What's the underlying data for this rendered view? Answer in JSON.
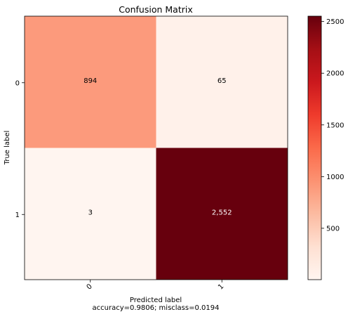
{
  "chart_data": {
    "type": "heatmap",
    "title": "Confusion Matrix",
    "xlabel": "Predicted label",
    "ylabel": "True label",
    "footnote": "accuracy=0.9806; misclass=0.0194",
    "x_categories": [
      "0",
      "1"
    ],
    "y_categories": [
      "0",
      "1"
    ],
    "values": [
      [
        894,
        65
      ],
      [
        3,
        2552
      ]
    ],
    "cell_labels": [
      [
        "894",
        "65"
      ],
      [
        "3",
        "2,552"
      ]
    ],
    "colormap": "Reds",
    "colorbar": {
      "min": 3,
      "max": 2552,
      "ticks": [
        500,
        1000,
        1500,
        2000,
        2500
      ],
      "tick_labels": [
        "500",
        "1000",
        "1500",
        "2000",
        "2500"
      ]
    },
    "grid": false
  },
  "colors": {
    "reds_scale": [
      "#fff5f0",
      "#fee0d2",
      "#fcbba1",
      "#fc9272",
      "#fb6a4a",
      "#ef3b2c",
      "#cb181d",
      "#a50f15",
      "#67000d"
    ],
    "text_on_light": "#000000",
    "text_on_dark": "#ffffff",
    "axis": "#000000"
  }
}
